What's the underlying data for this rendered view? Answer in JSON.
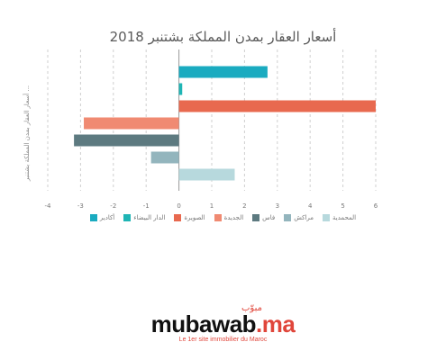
{
  "chart_data": {
    "type": "bar",
    "orientation": "horizontal",
    "title": "أسعار العقار بمدن المملكة بشتنبر 2018",
    "ylabel": "أسعار العقار بمدن المملكة بشتنبر ...",
    "xlim": [
      -4,
      6
    ],
    "xticks": [
      -4,
      -3,
      -2,
      -1,
      0,
      1,
      2,
      3,
      4,
      5,
      6
    ],
    "grid": "vertical-dashed",
    "legend_position": "bottom",
    "series": [
      {
        "name": "أكادير",
        "value": 2.7,
        "color": "#1aabc0"
      },
      {
        "name": "الدار البيضاء",
        "value": 0.1,
        "color": "#1fb5b5"
      },
      {
        "name": "الصويرة",
        "value": 6.0,
        "color": "#e8694f"
      },
      {
        "name": "الجديدة",
        "value": -2.9,
        "color": "#f08a72"
      },
      {
        "name": "فاس",
        "value": -3.2,
        "color": "#5d7a80"
      },
      {
        "name": "مراكش",
        "value": -0.85,
        "color": "#93b5bd"
      },
      {
        "name": "المحمدية",
        "value": 1.7,
        "color": "#b7d9dd"
      }
    ]
  },
  "logo": {
    "brand_main": "mubawab",
    "brand_suffix": ".ma",
    "brand_arabic": "مبوّب",
    "tagline": "Le 1er site immobilier du Maroc"
  }
}
